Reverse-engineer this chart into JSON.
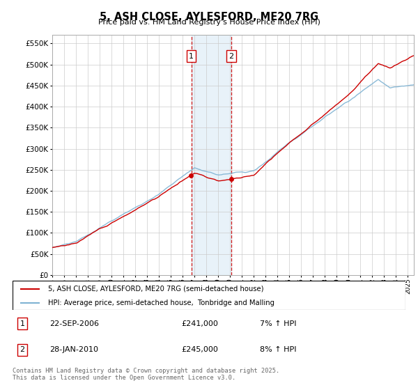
{
  "title": "5, ASH CLOSE, AYLESFORD, ME20 7RG",
  "subtitle": "Price paid vs. HM Land Registry's House Price Index (HPI)",
  "ytick_values": [
    0,
    50000,
    100000,
    150000,
    200000,
    250000,
    300000,
    350000,
    400000,
    450000,
    500000,
    550000
  ],
  "ylim": [
    0,
    570000
  ],
  "xlim": [
    1995,
    2025.5
  ],
  "hpi_color": "#7fb3d3",
  "price_color": "#cc0000",
  "marker1_date": 2006.73,
  "marker2_date": 2010.08,
  "shade_color": "#daeaf5",
  "legend_entries": [
    "5, ASH CLOSE, AYLESFORD, ME20 7RG (semi-detached house)",
    "HPI: Average price, semi-detached house,  Tonbridge and Malling"
  ],
  "annotation_rows": [
    {
      "num": "1",
      "date": "22-SEP-2006",
      "price": "£241,000",
      "hpi": "7% ↑ HPI"
    },
    {
      "num": "2",
      "date": "28-JAN-2010",
      "price": "£245,000",
      "hpi": "8% ↑ HPI"
    }
  ],
  "footer": "Contains HM Land Registry data © Crown copyright and database right 2025.\nThis data is licensed under the Open Government Licence v3.0."
}
